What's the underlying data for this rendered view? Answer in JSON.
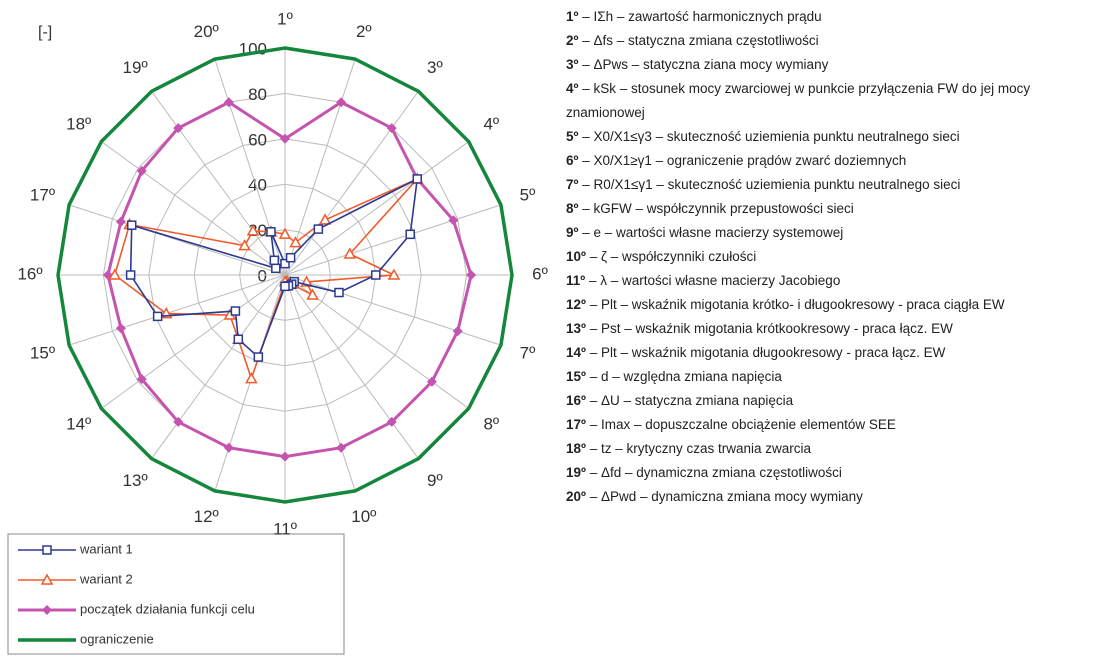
{
  "chart_data": {
    "type": "radar",
    "y_axis_label": "[-]",
    "categories": [
      "1º",
      "2º",
      "3º",
      "4º",
      "5º",
      "6º",
      "7º",
      "8º",
      "9º",
      "10º",
      "11º",
      "12º",
      "13º",
      "14º",
      "15º",
      "16º",
      "17º",
      "18º",
      "19º",
      "20º"
    ],
    "ylim": [
      0,
      100
    ],
    "yticks": [
      0,
      20,
      40,
      60,
      80,
      100
    ],
    "grid": true,
    "legend": "bottom-left",
    "series": [
      {
        "name": "wariant 1",
        "color": "#2b3990",
        "marker": "square",
        "values": [
          5,
          8,
          25,
          72,
          58,
          40,
          25,
          5,
          5,
          5,
          5,
          38,
          35,
          27,
          59,
          68,
          71,
          5,
          8,
          20
        ]
      },
      {
        "name": "wariant 2",
        "color": "#f15a29",
        "marker": "triangle",
        "values": [
          18,
          15,
          30,
          72,
          30,
          48,
          10,
          15,
          5,
          3,
          3,
          48,
          35,
          30,
          55,
          75,
          72,
          22,
          24,
          20
        ]
      },
      {
        "name": "początek działania funkcji celu",
        "color": "#c454b0",
        "marker": "diamond",
        "values": [
          60,
          80,
          80,
          72,
          78,
          82,
          80,
          80,
          80,
          80,
          80,
          80,
          80,
          78,
          76,
          78,
          76,
          78,
          80,
          80
        ]
      },
      {
        "name": "ograniczenie",
        "color": "#14873c",
        "marker": "none",
        "values": [
          100,
          100,
          100,
          100,
          100,
          100,
          100,
          100,
          100,
          100,
          100,
          100,
          100,
          100,
          100,
          100,
          100,
          100,
          100,
          100
        ]
      }
    ],
    "category_descriptions": [
      "– IΣh – zawartość harmonicznych prądu",
      "– Δfs – statyczna zmiana częstotliwości",
      "– ΔPws – statyczna ziana mocy wymiany",
      "– kSk – stosunek mocy zwarciowej w punkcie przyłączenia FW do jej mocy znamionowej",
      "– X0/X1≤γ3 – skuteczność uziemienia punktu neutralnego sieci",
      "– X0/X1≥γ1 – ograniczenie prądów zwarć doziemnych",
      "– R0/X1≤γ1 – skuteczność uziemienia punktu neutralnego sieci",
      "– kGFW – współczynnik przepustowości sieci",
      "– e – wartości własne macierzy systemowej",
      "– ζ – współczynniki czułości",
      "– λ – wartości własne macierzy Jacobiego",
      "– Plt – wskaźnik migotania krótko- i długookresowy - praca ciągła EW",
      "– Pst – wskaźnik migotania krótkookresowy - praca łącz. EW",
      "– Plt – wskaźnik migotania długookresowy - praca łącz. EW",
      "– d – względna zmiana napięcia",
      "– ΔU – statyczna zmiana napięcia",
      "– Imax – dopuszczalne obciążenie elementów SEE",
      "– tz – krytyczny czas trwania zwarcia",
      "– Δfd – dynamiczna zmiana częstotliwości",
      "– ΔPwd – dynamiczna zmiana mocy wymiany"
    ]
  }
}
